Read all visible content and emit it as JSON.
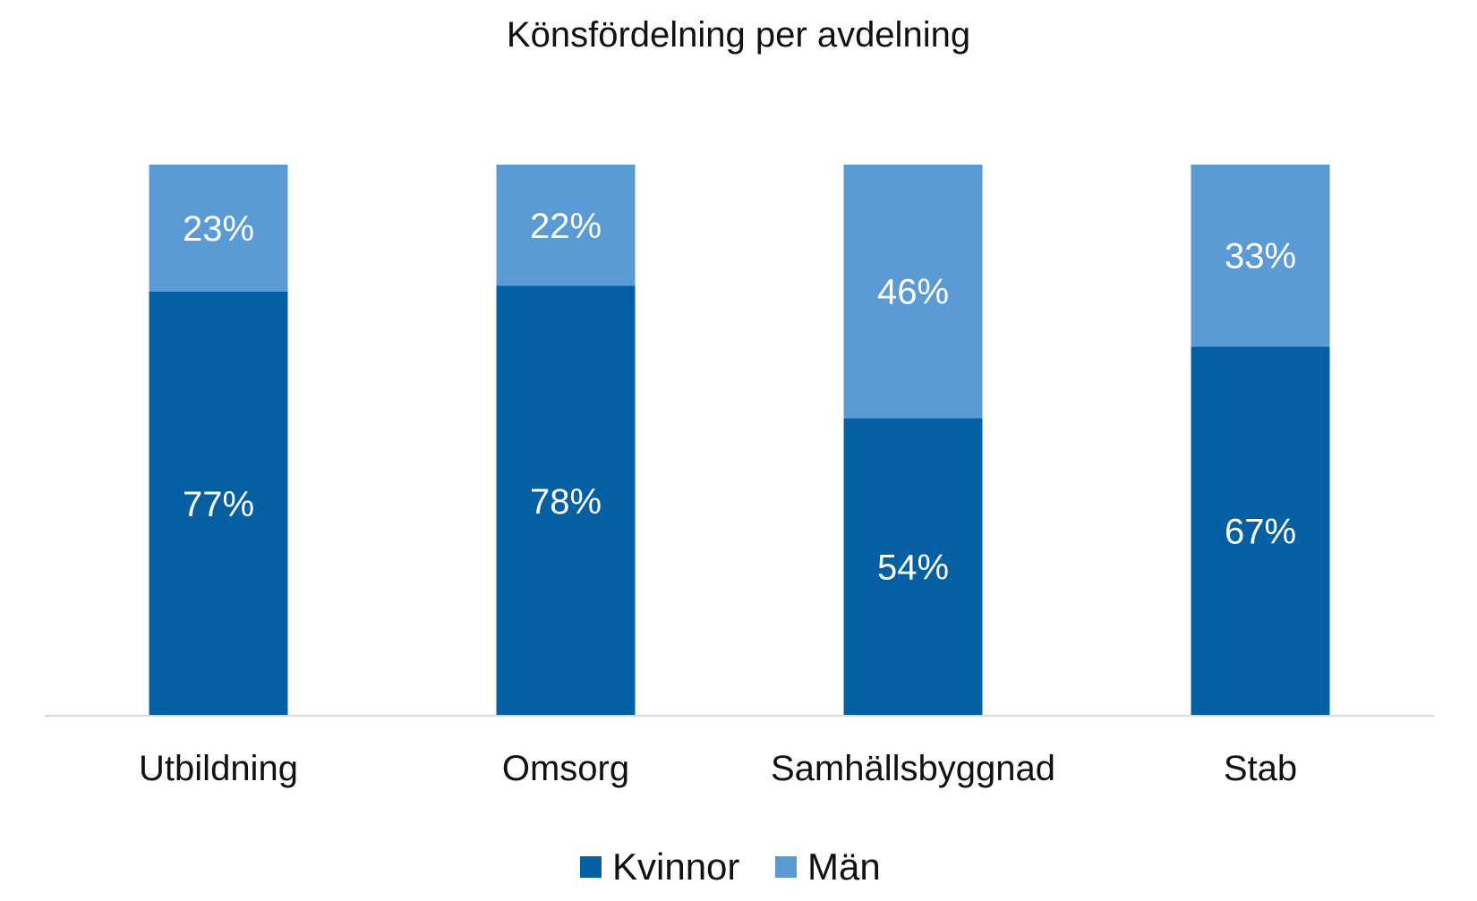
{
  "chart_data": {
    "type": "bar",
    "stacked": true,
    "title": "Könsfördelning per avdelning",
    "categories": [
      "Utbildning",
      "Omsorg",
      "Samhällsbyggnad",
      "Stab"
    ],
    "series": [
      {
        "name": "Kvinnor",
        "values": [
          77,
          78,
          54,
          67
        ],
        "labels": [
          "77%",
          "78%",
          "54%",
          "67%"
        ],
        "color": "#0560a3"
      },
      {
        "name": "Män",
        "values": [
          23,
          22,
          46,
          33
        ],
        "labels": [
          "23%",
          "22%",
          "46%",
          "33%"
        ],
        "color": "#5b9bd5"
      }
    ],
    "xlabel": "",
    "ylabel": "",
    "ylim": [
      0,
      100
    ],
    "grid": false,
    "legend": "bottom-center"
  },
  "colors": {
    "axis_line": "#d9d9d9",
    "text": "#111111",
    "data_label": "#ffffff"
  }
}
